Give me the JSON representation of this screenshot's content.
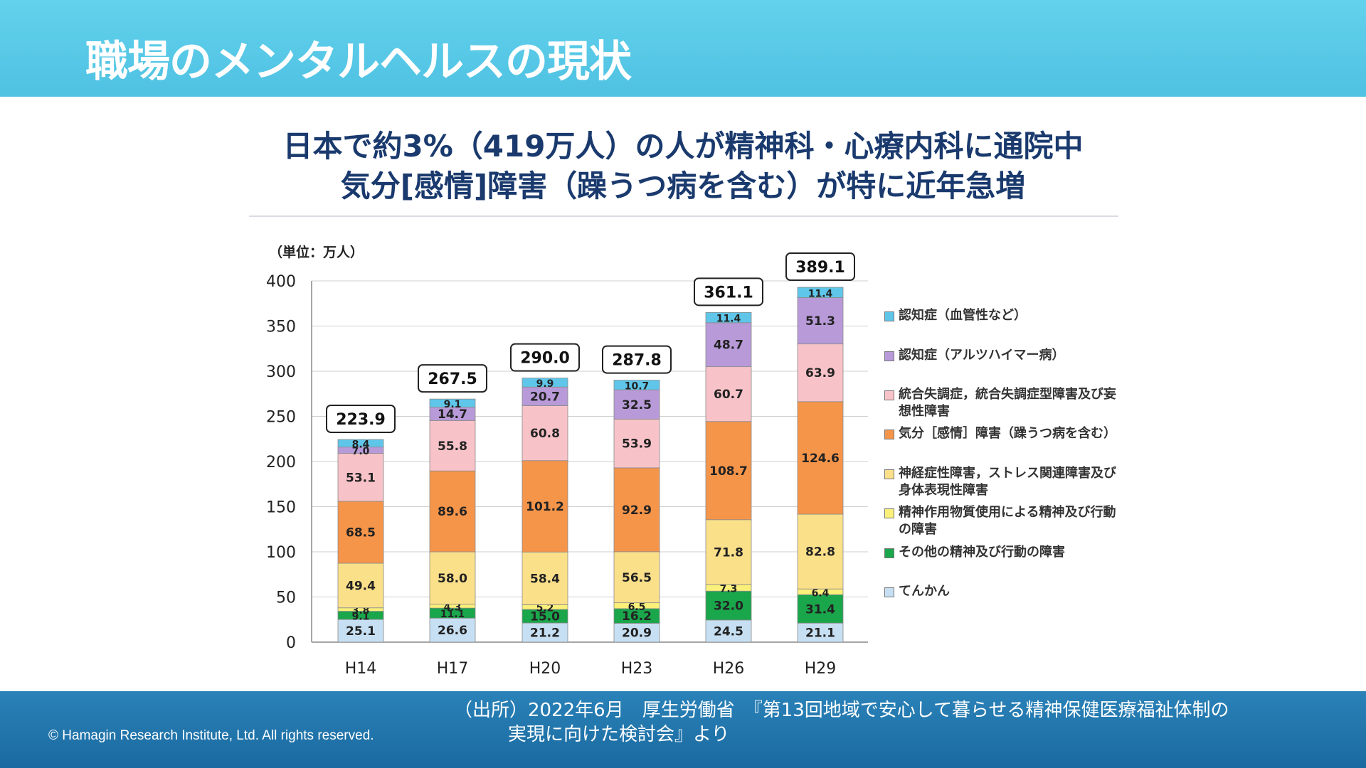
{
  "header": {
    "title": "職場のメンタルヘルスの現状"
  },
  "headline": {
    "line1": "日本で約3%（419万人）の人が精神科・心療内科に通院中",
    "line2": "気分[感情]障害（躁うつ病を含む）が特に近年急増"
  },
  "colors": {
    "header": "#5ccbea",
    "footer": "#1f74aa",
    "headline": "#1a3a6e"
  },
  "chart_data": {
    "type": "bar",
    "stacked": true,
    "unit_label": "（単位：万人）",
    "categories": [
      "H14",
      "H17",
      "H20",
      "H23",
      "H26",
      "H29"
    ],
    "totals": [
      "223.9",
      "267.5",
      "290.0",
      "287.8",
      "361.1",
      "389.1"
    ],
    "ylim": [
      0,
      400
    ],
    "yticks": [
      0,
      50,
      100,
      150,
      200,
      250,
      300,
      350,
      400
    ],
    "grid": true,
    "legend_position": "right",
    "series": [
      {
        "name": "てんかん",
        "color": "#c7dff2",
        "values": [
          25.1,
          26.6,
          21.2,
          20.9,
          24.5,
          21.1
        ]
      },
      {
        "name": "その他の精神及び行動の障害",
        "color": "#1aa64b",
        "values": [
          9.1,
          11.1,
          15.0,
          16.2,
          32.0,
          31.4
        ]
      },
      {
        "name": "精神作用物質使用による精神及び行動の障害",
        "color": "#faf07a",
        "values": [
          3.8,
          4.3,
          5.2,
          6.5,
          7.3,
          6.4
        ]
      },
      {
        "name": "神経症性障害，ストレス関連障害及び身体表現性障害",
        "color": "#fbe08a",
        "values": [
          49.4,
          58.0,
          58.4,
          56.5,
          71.8,
          82.8
        ]
      },
      {
        "name": "気分［感情］障害（躁うつ病を含む）",
        "color": "#f5954a",
        "values": [
          68.5,
          89.6,
          101.2,
          92.9,
          108.7,
          124.6
        ]
      },
      {
        "name": "統合失調症，統合失調症型障害及び妄想性障害",
        "color": "#f7c3c8",
        "values": [
          53.1,
          55.8,
          60.8,
          53.9,
          60.7,
          63.9
        ]
      },
      {
        "name": "認知症（アルツハイマー病）",
        "color": "#b89ad8",
        "values": [
          7.0,
          14.7,
          20.7,
          32.5,
          48.7,
          51.3
        ]
      },
      {
        "name": "認知症（血管性など）",
        "color": "#5fc6ea",
        "values": [
          8.4,
          9.1,
          9.9,
          10.7,
          11.4,
          11.4
        ]
      }
    ]
  },
  "legend": [
    {
      "text": "認知症（血管性など）",
      "color": "#5fc6ea"
    },
    {
      "text": "認知症（アルツハイマー病）",
      "color": "#b89ad8"
    },
    {
      "text": "統合失調症，統合失調症型障害及び妄想性障害",
      "color": "#f7c3c8"
    },
    {
      "text": "気分［感情］障害（躁うつ病を含む）",
      "color": "#f5954a"
    },
    {
      "text": "神経症性障害，ストレス関連障害及び身体表現性障害",
      "color": "#fbe08a"
    },
    {
      "text": "精神作用物質使用による精神及び行動の障害",
      "color": "#faf07a"
    },
    {
      "text": "その他の精神及び行動の障害",
      "color": "#1aa64b"
    },
    {
      "text": "てんかん",
      "color": "#c7dff2"
    }
  ],
  "footer": {
    "copyright": "© Hamagin Research Institute, Ltd.  All rights reserved.",
    "source_line1": "（出所）2022年6月　厚生労働省　『第13回地域で安心して暮らせる精神保健医療福祉体制の",
    "source_line2": "実現に向けた検討会』より"
  }
}
